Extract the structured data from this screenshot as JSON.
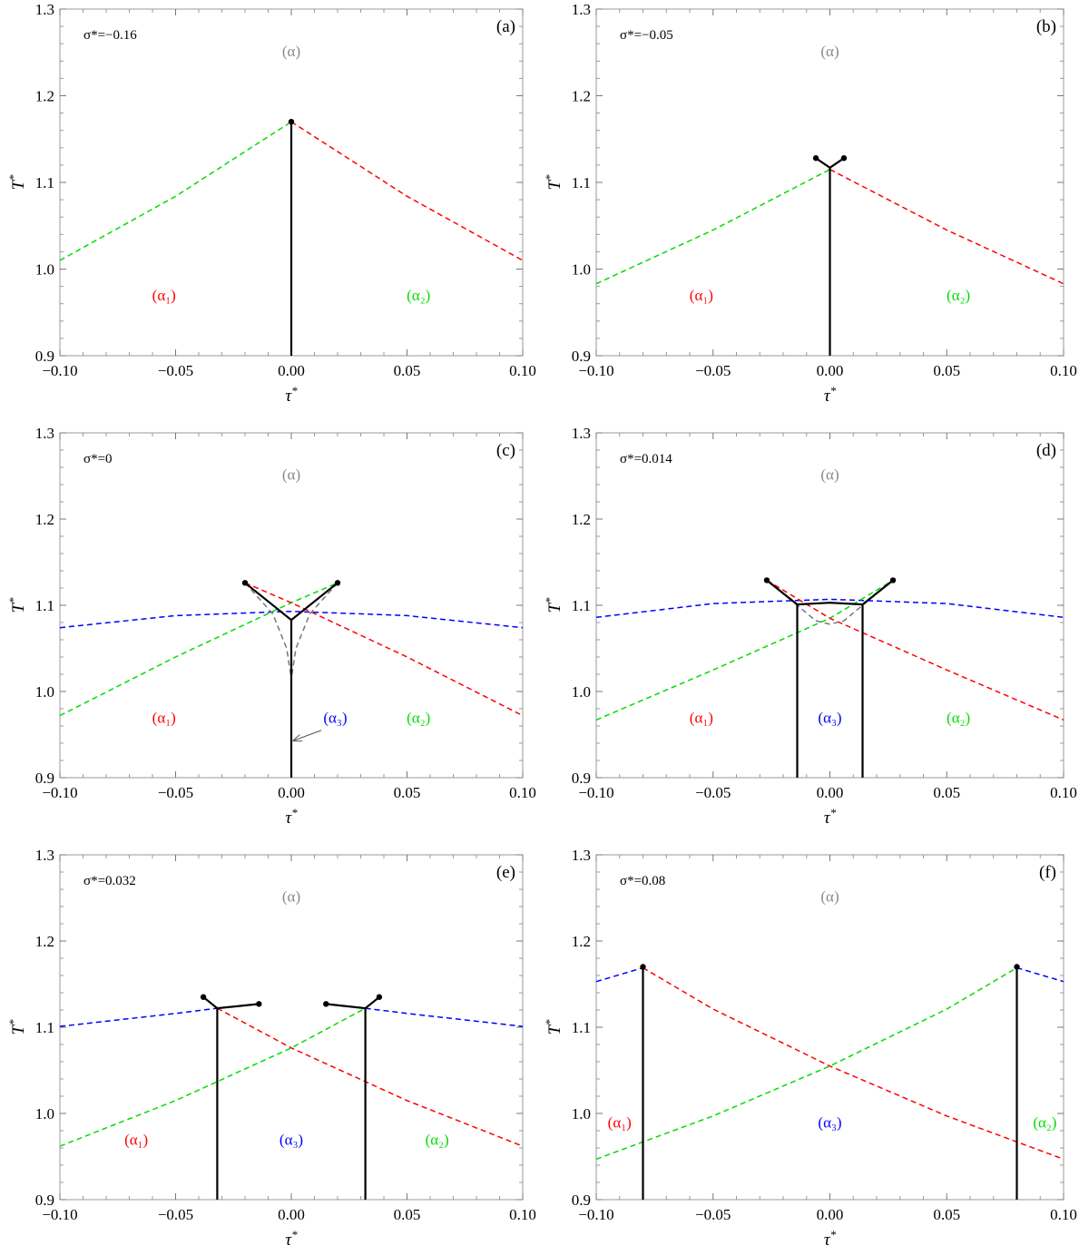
{
  "figure": {
    "colors": {
      "alpha": "#888888",
      "alpha1": "#ff0000",
      "alpha2": "#00dd00",
      "alpha3": "#0000ff",
      "boundary": "#000000",
      "metastable": "#777777"
    },
    "axes": {
      "xlabel_main": "τ",
      "xlabel_sup": "*",
      "ylabel_main": "T",
      "ylabel_sup": "*",
      "xlim": [
        -0.1,
        0.1
      ],
      "ylim": [
        0.9,
        1.3
      ],
      "xticks": [
        "−0.10",
        "−0.05",
        "0.00",
        "0.05",
        "0.10"
      ],
      "yticks": [
        "0.9",
        "1.0",
        "1.1",
        "1.2",
        "1.3"
      ]
    },
    "phases": {
      "alpha": "(α)",
      "alpha1": "(α₁)",
      "alpha2": "(α₂)",
      "alpha3": "(α₃)"
    }
  },
  "chart_data": [
    {
      "type": "line",
      "tag": "(a)",
      "sigma_label": "σ*=−0.16",
      "phase_labels": [
        {
          "phase": "alpha",
          "text": "(α)",
          "x": 0.0,
          "y": 1.252
        },
        {
          "phase": "alpha1",
          "text": "(α₁)",
          "x": -0.055,
          "y": 0.97
        },
        {
          "phase": "alpha2",
          "text": "(α₂)",
          "x": 0.055,
          "y": 0.97
        }
      ],
      "curves": [
        {
          "color": "alpha2",
          "style": "dashed",
          "points": [
            [
              -0.1,
              1.01
            ],
            [
              -0.05,
              1.084
            ],
            [
              0.0,
              1.17
            ]
          ]
        },
        {
          "color": "alpha1",
          "style": "dashed",
          "points": [
            [
              0.0,
              1.17
            ],
            [
              0.05,
              1.084
            ],
            [
              0.1,
              1.01
            ]
          ]
        },
        {
          "color": "boundary",
          "style": "solid",
          "points": [
            [
              0.0,
              0.9
            ],
            [
              0.0,
              1.17
            ]
          ]
        }
      ],
      "dots": [
        [
          0.0,
          1.17
        ]
      ],
      "arrows": []
    },
    {
      "type": "line",
      "tag": "(b)",
      "sigma_label": "σ*=−0.05",
      "phase_labels": [
        {
          "phase": "alpha",
          "text": "(α)",
          "x": 0.0,
          "y": 1.252
        },
        {
          "phase": "alpha1",
          "text": "(α₁)",
          "x": -0.055,
          "y": 0.97
        },
        {
          "phase": "alpha2",
          "text": "(α₂)",
          "x": 0.055,
          "y": 0.97
        }
      ],
      "curves": [
        {
          "color": "alpha2",
          "style": "dashed",
          "points": [
            [
              -0.1,
              0.983
            ],
            [
              -0.05,
              1.045
            ],
            [
              0.0,
              1.115
            ]
          ]
        },
        {
          "color": "alpha1",
          "style": "dashed",
          "points": [
            [
              0.0,
              1.115
            ],
            [
              0.05,
              1.045
            ],
            [
              0.1,
              0.983
            ]
          ]
        },
        {
          "color": "boundary",
          "style": "solid",
          "points": [
            [
              0.0,
              0.9
            ],
            [
              0.0,
              1.117
            ]
          ]
        },
        {
          "color": "boundary",
          "style": "solid",
          "points": [
            [
              -0.006,
              1.128
            ],
            [
              0.0,
              1.117
            ],
            [
              0.006,
              1.128
            ]
          ]
        }
      ],
      "dots": [
        [
          -0.006,
          1.128
        ],
        [
          0.006,
          1.128
        ]
      ],
      "arrows": []
    },
    {
      "type": "line",
      "tag": "(c)",
      "sigma_label": "σ*=0",
      "phase_labels": [
        {
          "phase": "alpha",
          "text": "(α)",
          "x": 0.0,
          "y": 1.252
        },
        {
          "phase": "alpha1",
          "text": "(α₁)",
          "x": -0.055,
          "y": 0.97
        },
        {
          "phase": "alpha3",
          "text": "(α₃)",
          "x": 0.019,
          "y": 0.97
        },
        {
          "phase": "alpha2",
          "text": "(α₂)",
          "x": 0.055,
          "y": 0.97
        }
      ],
      "curves": [
        {
          "color": "alpha3",
          "style": "dashed",
          "points": [
            [
              -0.1,
              1.074
            ],
            [
              -0.05,
              1.088
            ],
            [
              0.0,
              1.093
            ],
            [
              0.05,
              1.088
            ],
            [
              0.1,
              1.074
            ]
          ]
        },
        {
          "color": "alpha2",
          "style": "dashed",
          "points": [
            [
              -0.1,
              0.972
            ],
            [
              -0.05,
              1.04
            ],
            [
              0.0,
              1.103
            ],
            [
              0.02,
              1.126
            ]
          ]
        },
        {
          "color": "alpha1",
          "style": "dashed",
          "points": [
            [
              -0.02,
              1.126
            ],
            [
              0.0,
              1.103
            ],
            [
              0.05,
              1.04
            ],
            [
              0.1,
              0.972
            ]
          ]
        },
        {
          "color": "metastable",
          "style": "dashed",
          "points": [
            [
              -0.02,
              1.126
            ],
            [
              -0.008,
              1.09
            ],
            [
              -0.002,
              1.05
            ],
            [
              0.0,
              1.015
            ]
          ]
        },
        {
          "color": "metastable",
          "style": "dashed",
          "points": [
            [
              0.02,
              1.126
            ],
            [
              0.008,
              1.09
            ],
            [
              0.002,
              1.05
            ],
            [
              0.0,
              1.015
            ]
          ]
        },
        {
          "color": "boundary",
          "style": "solid",
          "points": [
            [
              0.0,
              0.9
            ],
            [
              0.0,
              1.083
            ]
          ]
        },
        {
          "color": "boundary",
          "style": "solid",
          "points": [
            [
              -0.02,
              1.126
            ],
            [
              0.0,
              1.083
            ],
            [
              0.02,
              1.126
            ]
          ]
        }
      ],
      "dots": [
        [
          -0.02,
          1.126
        ],
        [
          0.02,
          1.126
        ]
      ],
      "arrows": [
        {
          "from": [
            0.013,
            0.955
          ],
          "to": [
            0.001,
            0.943
          ]
        }
      ]
    },
    {
      "type": "line",
      "tag": "(d)",
      "sigma_label": "σ*=0.014",
      "phase_labels": [
        {
          "phase": "alpha",
          "text": "(α)",
          "x": 0.0,
          "y": 1.252
        },
        {
          "phase": "alpha1",
          "text": "(α₁)",
          "x": -0.055,
          "y": 0.97
        },
        {
          "phase": "alpha3",
          "text": "(α₃)",
          "x": 0.0,
          "y": 0.97
        },
        {
          "phase": "alpha2",
          "text": "(α₂)",
          "x": 0.055,
          "y": 0.97
        }
      ],
      "curves": [
        {
          "color": "alpha3",
          "style": "dashed",
          "points": [
            [
              -0.1,
              1.086
            ],
            [
              -0.05,
              1.102
            ],
            [
              0.0,
              1.107
            ],
            [
              0.05,
              1.102
            ],
            [
              0.1,
              1.086
            ]
          ]
        },
        {
          "color": "alpha2",
          "style": "dashed",
          "points": [
            [
              -0.1,
              0.967
            ],
            [
              -0.05,
              1.025
            ],
            [
              0.0,
              1.085
            ],
            [
              0.027,
              1.129
            ]
          ]
        },
        {
          "color": "alpha1",
          "style": "dashed",
          "points": [
            [
              -0.027,
              1.129
            ],
            [
              0.0,
              1.085
            ],
            [
              0.05,
              1.025
            ],
            [
              0.1,
              0.967
            ]
          ]
        },
        {
          "color": "metastable",
          "style": "dashed",
          "points": [
            [
              -0.027,
              1.129
            ],
            [
              -0.014,
              1.1
            ],
            [
              -0.006,
              1.082
            ],
            [
              0.0,
              1.078
            ],
            [
              0.006,
              1.082
            ],
            [
              0.014,
              1.1
            ],
            [
              0.027,
              1.129
            ]
          ]
        },
        {
          "color": "boundary",
          "style": "solid",
          "points": [
            [
              -0.014,
              0.9
            ],
            [
              -0.014,
              1.101
            ]
          ]
        },
        {
          "color": "boundary",
          "style": "solid",
          "points": [
            [
              0.014,
              0.9
            ],
            [
              0.014,
              1.101
            ]
          ]
        },
        {
          "color": "boundary",
          "style": "solid",
          "points": [
            [
              -0.027,
              1.129
            ],
            [
              -0.014,
              1.101
            ],
            [
              0.0,
              1.103
            ],
            [
              0.014,
              1.101
            ],
            [
              0.027,
              1.129
            ]
          ]
        }
      ],
      "dots": [
        [
          -0.027,
          1.129
        ],
        [
          0.027,
          1.129
        ]
      ],
      "arrows": []
    },
    {
      "type": "line",
      "tag": "(e)",
      "sigma_label": "σ*=0.032",
      "phase_labels": [
        {
          "phase": "alpha",
          "text": "(α)",
          "x": 0.0,
          "y": 1.252
        },
        {
          "phase": "alpha1",
          "text": "(α₁)",
          "x": -0.067,
          "y": 0.97
        },
        {
          "phase": "alpha3",
          "text": "(α₃)",
          "x": 0.0,
          "y": 0.97
        },
        {
          "phase": "alpha2",
          "text": "(α₂)",
          "x": 0.063,
          "y": 0.97
        }
      ],
      "curves": [
        {
          "color": "alpha3",
          "style": "dashed",
          "points": [
            [
              -0.1,
              1.101
            ],
            [
              -0.05,
              1.116
            ],
            [
              -0.032,
              1.122
            ]
          ]
        },
        {
          "color": "alpha3",
          "style": "dashed",
          "points": [
            [
              0.032,
              1.122
            ],
            [
              0.05,
              1.116
            ],
            [
              0.1,
              1.101
            ]
          ]
        },
        {
          "color": "alpha2",
          "style": "dashed",
          "points": [
            [
              -0.1,
              0.962
            ],
            [
              -0.05,
              1.015
            ],
            [
              0.0,
              1.076
            ],
            [
              0.032,
              1.122
            ]
          ]
        },
        {
          "color": "alpha1",
          "style": "dashed",
          "points": [
            [
              -0.032,
              1.122
            ],
            [
              0.0,
              1.076
            ],
            [
              0.05,
              1.015
            ],
            [
              0.1,
              0.962
            ]
          ]
        },
        {
          "color": "boundary",
          "style": "solid",
          "points": [
            [
              -0.032,
              0.9
            ],
            [
              -0.032,
              1.122
            ]
          ]
        },
        {
          "color": "boundary",
          "style": "solid",
          "points": [
            [
              0.032,
              0.9
            ],
            [
              0.032,
              1.122
            ]
          ]
        },
        {
          "color": "boundary",
          "style": "solid",
          "points": [
            [
              -0.038,
              1.135
            ],
            [
              -0.032,
              1.122
            ],
            [
              -0.014,
              1.127
            ]
          ]
        },
        {
          "color": "boundary",
          "style": "solid",
          "points": [
            [
              0.015,
              1.127
            ],
            [
              0.032,
              1.122
            ],
            [
              0.038,
              1.135
            ]
          ]
        }
      ],
      "dots": [
        [
          -0.038,
          1.135
        ],
        [
          -0.014,
          1.127
        ],
        [
          0.015,
          1.127
        ],
        [
          0.038,
          1.135
        ]
      ],
      "arrows": []
    },
    {
      "type": "line",
      "tag": "(f)",
      "sigma_label": "σ*=0.08",
      "phase_labels": [
        {
          "phase": "alpha",
          "text": "(α)",
          "x": 0.0,
          "y": 1.252
        },
        {
          "phase": "alpha1",
          "text": "(α₁)",
          "x": -0.09,
          "y": 0.99
        },
        {
          "phase": "alpha3",
          "text": "(α₃)",
          "x": 0.0,
          "y": 0.99
        },
        {
          "phase": "alpha2",
          "text": "(α₂)",
          "x": 0.092,
          "y": 0.99
        }
      ],
      "curves": [
        {
          "color": "alpha3",
          "style": "dashed",
          "points": [
            [
              -0.1,
              1.153
            ],
            [
              -0.08,
              1.169
            ]
          ]
        },
        {
          "color": "alpha3",
          "style": "dashed",
          "points": [
            [
              0.08,
              1.169
            ],
            [
              0.1,
              1.153
            ]
          ]
        },
        {
          "color": "alpha1",
          "style": "dashed",
          "points": [
            [
              -0.08,
              1.169
            ],
            [
              -0.05,
              1.121
            ],
            [
              0.0,
              1.055
            ],
            [
              0.05,
              0.997
            ],
            [
              0.1,
              0.947
            ]
          ]
        },
        {
          "color": "alpha2",
          "style": "dashed",
          "points": [
            [
              -0.1,
              0.947
            ],
            [
              -0.05,
              0.997
            ],
            [
              0.0,
              1.055
            ],
            [
              0.05,
              1.121
            ],
            [
              0.08,
              1.169
            ]
          ]
        },
        {
          "color": "boundary",
          "style": "solid",
          "points": [
            [
              -0.08,
              0.9
            ],
            [
              -0.08,
              1.17
            ]
          ]
        },
        {
          "color": "boundary",
          "style": "solid",
          "points": [
            [
              0.08,
              0.9
            ],
            [
              0.08,
              1.17
            ]
          ]
        }
      ],
      "dots": [
        [
          -0.08,
          1.17
        ],
        [
          0.08,
          1.17
        ]
      ],
      "arrows": []
    }
  ]
}
